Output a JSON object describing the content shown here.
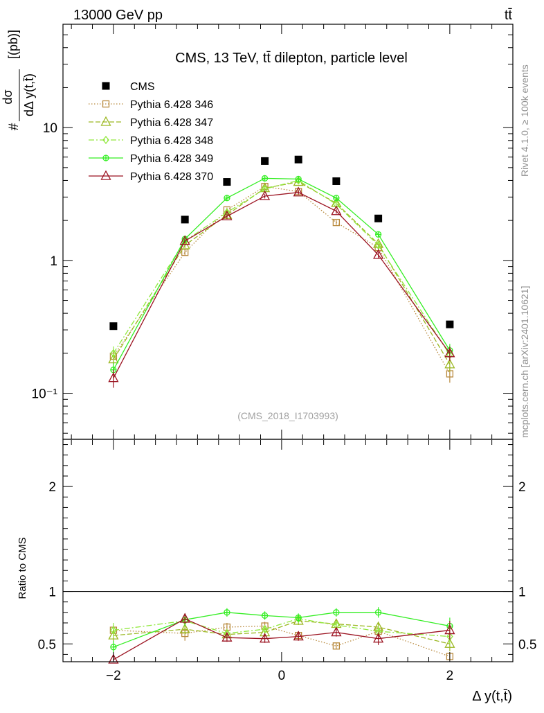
{
  "header": {
    "energy_label": "13000 GeV pp",
    "process_label": "tt̄",
    "plot_title": "CMS, 13 TeV, tt̄ dilepton, particle level",
    "analysis_id": "(CMS_2018_I1703993)",
    "side_label_rivet": "Rivet 4.1.0, ≥ 100k events",
    "side_label_site": "mcplots.cern.ch [arXiv:2401.10621]"
  },
  "colors": {
    "CMS": "#000000",
    "Pythia 6.428 346": "#b8893c",
    "Pythia 6.428 347": "#9cb823",
    "Pythia 6.428 348": "#90e83c",
    "Pythia 6.428 349": "#33ee22",
    "Pythia 6.428 370": "#9b1220"
  },
  "chart_data": [
    {
      "type": "scatter",
      "panel": "main",
      "ylabel_prefix": "#",
      "ylabel_numerator": "dσ",
      "ylabel_denominator": "dΔ y(t,t̄)",
      "ylabel_unit": "[(pb)]",
      "yscale": "log",
      "ylim": [
        0.045,
        60
      ],
      "xlim": [
        -2.6,
        2.75
      ],
      "y_tick_labels": [
        "10⁻¹",
        "1",
        "10"
      ],
      "x": [
        -2.0,
        -1.15,
        -0.65,
        -0.2,
        0.2,
        0.65,
        1.15,
        2.0
      ],
      "series": [
        {
          "name": "CMS",
          "marker": "square-filled",
          "values": [
            0.32,
            2.03,
            3.9,
            5.6,
            5.75,
            3.95,
            2.07,
            0.33
          ],
          "errors": [
            0,
            0,
            0,
            0,
            0,
            0,
            0,
            0
          ]
        },
        {
          "name": "Pythia 6.428 346",
          "marker": "square-open",
          "dash": "1.5,2.5",
          "values": [
            0.19,
            1.15,
            2.4,
            3.6,
            3.3,
            1.93,
            1.25,
            0.14
          ],
          "errors": [
            0.025,
            0.06,
            0.1,
            0.13,
            0.12,
            0.08,
            0.07,
            0.02
          ]
        },
        {
          "name": "Pythia 6.428 347",
          "marker": "triangle-open",
          "dash": "7,3",
          "values": [
            0.18,
            1.3,
            2.2,
            3.5,
            3.9,
            2.7,
            1.33,
            0.165
          ],
          "errors": [
            0.025,
            0.06,
            0.1,
            0.13,
            0.13,
            0.1,
            0.07,
            0.02
          ]
        },
        {
          "name": "Pythia 6.428 348",
          "marker": "diamond-open",
          "dash": "8,3,2,3",
          "values": [
            0.2,
            1.4,
            2.3,
            3.45,
            4.0,
            2.65,
            1.3,
            0.195
          ],
          "errors": [
            0.025,
            0.06,
            0.1,
            0.13,
            0.13,
            0.1,
            0.07,
            0.02
          ]
        },
        {
          "name": "Pythia 6.428 349",
          "marker": "cross-circle",
          "values": [
            0.15,
            1.45,
            2.95,
            4.15,
            4.1,
            2.95,
            1.57,
            0.21
          ],
          "errors": [
            0.02,
            0.06,
            0.12,
            0.15,
            0.14,
            0.12,
            0.08,
            0.025
          ]
        },
        {
          "name": "Pythia 6.428 370",
          "marker": "triangle-open",
          "values": [
            0.13,
            1.4,
            2.15,
            3.05,
            3.25,
            2.35,
            1.1,
            0.2
          ],
          "errors": [
            0.02,
            0.06,
            0.1,
            0.12,
            0.12,
            0.1,
            0.06,
            0.025
          ]
        }
      ]
    },
    {
      "type": "scatter",
      "panel": "ratio",
      "ylabel": "Ratio to CMS",
      "xlabel": "Δ y(t,t̄)",
      "ylim": [
        0.33,
        2.45
      ],
      "xlim": [
        -2.6,
        2.75
      ],
      "y_ticks": [
        0.5,
        1,
        2
      ],
      "y_tick_labels": [
        "0.5",
        "1",
        "2"
      ],
      "x_ticks": [
        -2,
        0,
        2
      ],
      "x_tick_labels": [
        "−2",
        "0",
        "2"
      ],
      "x": [
        -2.0,
        -1.15,
        -0.65,
        -0.2,
        0.2,
        0.65,
        1.15,
        2.0
      ],
      "series": [
        {
          "name": "Pythia 6.428 346",
          "values": [
            0.63,
            0.6,
            0.66,
            0.67,
            0.58,
            0.48,
            0.62,
            0.38
          ],
          "errors": [
            0.05,
            0.07,
            0.04,
            0.04,
            0.04,
            0.03,
            0.05,
            0.04
          ]
        },
        {
          "name": "Pythia 6.428 347",
          "values": [
            0.58,
            0.64,
            0.59,
            0.61,
            0.72,
            0.69,
            0.66,
            0.5
          ],
          "errors": [
            0.06,
            0.05,
            0.04,
            0.04,
            0.04,
            0.04,
            0.05,
            0.07
          ]
        },
        {
          "name": "Pythia 6.428 348",
          "values": [
            0.63,
            0.72,
            0.6,
            0.64,
            0.74,
            0.68,
            0.62,
            0.57
          ],
          "errors": [
            0.07,
            0.05,
            0.04,
            0.04,
            0.04,
            0.04,
            0.05,
            0.07
          ]
        },
        {
          "name": "Pythia 6.428 349",
          "values": [
            0.47,
            0.73,
            0.8,
            0.77,
            0.75,
            0.8,
            0.8,
            0.67
          ],
          "errors": [
            0.06,
            0.06,
            0.04,
            0.04,
            0.04,
            0.04,
            0.05,
            0.08
          ]
        },
        {
          "name": "Pythia 6.428 370",
          "values": [
            0.35,
            0.74,
            0.56,
            0.55,
            0.57,
            0.61,
            0.55,
            0.63
          ],
          "errors": [
            0.06,
            0.05,
            0.04,
            0.04,
            0.04,
            0.04,
            0.06,
            0.09
          ]
        }
      ]
    }
  ]
}
